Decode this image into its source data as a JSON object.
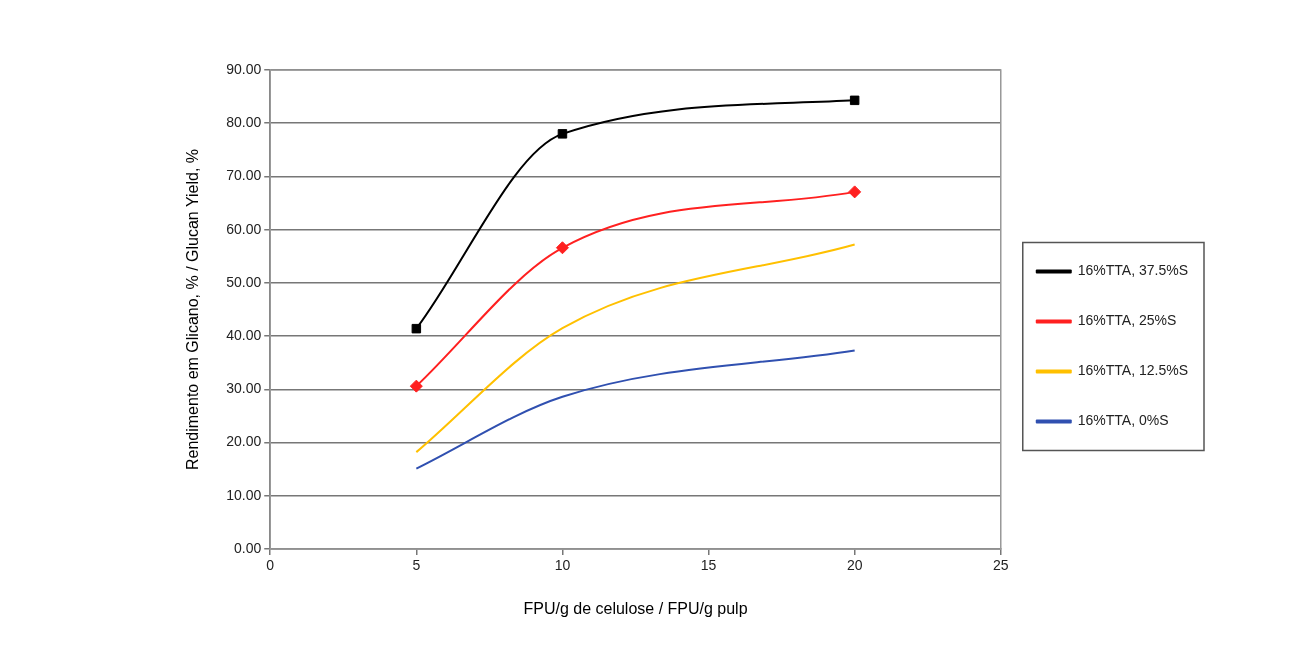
{
  "chart_data": {
    "type": "line",
    "xlabel": "FPU/g de celulose / FPU/g pulp",
    "ylabel": "Rendimento em Glicano, % / Glucan Yield, %",
    "x": [
      5,
      10,
      20
    ],
    "series": [
      {
        "name": "16%TTA, 37.5%S",
        "color": "#000000",
        "marker": "square",
        "values": [
          41.4,
          78.0,
          84.3
        ]
      },
      {
        "name": "16%TTA, 25%S",
        "color": "#ff2020",
        "marker": "diamond",
        "values": [
          30.6,
          56.6,
          67.1
        ]
      },
      {
        "name": "16%TTA, 12.5%S",
        "color": "#ffc000",
        "marker": "none",
        "values": [
          18.2,
          41.5,
          57.2
        ]
      },
      {
        "name": "16%TTA, 0%S",
        "color": "#3050b0",
        "marker": "none",
        "values": [
          15.1,
          28.6,
          37.3
        ]
      }
    ],
    "xlim": [
      0,
      25
    ],
    "xticks": [
      0,
      5,
      10,
      15,
      20,
      25
    ],
    "ylim": [
      0,
      90
    ],
    "yticks": [
      {
        "value": 0,
        "label": "0.00"
      },
      {
        "value": 10,
        "label": "10.00"
      },
      {
        "value": 20,
        "label": "20.00"
      },
      {
        "value": 30,
        "label": "30.00"
      },
      {
        "value": 40,
        "label": "40.00"
      },
      {
        "value": 50,
        "label": "50.00"
      },
      {
        "value": 60,
        "label": "60.00"
      },
      {
        "value": 70,
        "label": "70.00"
      },
      {
        "value": 80,
        "label": "80.00"
      },
      {
        "value": 90,
        "label": "90.00"
      }
    ],
    "grid": "y",
    "legend": "right",
    "line_style": "solid"
  }
}
